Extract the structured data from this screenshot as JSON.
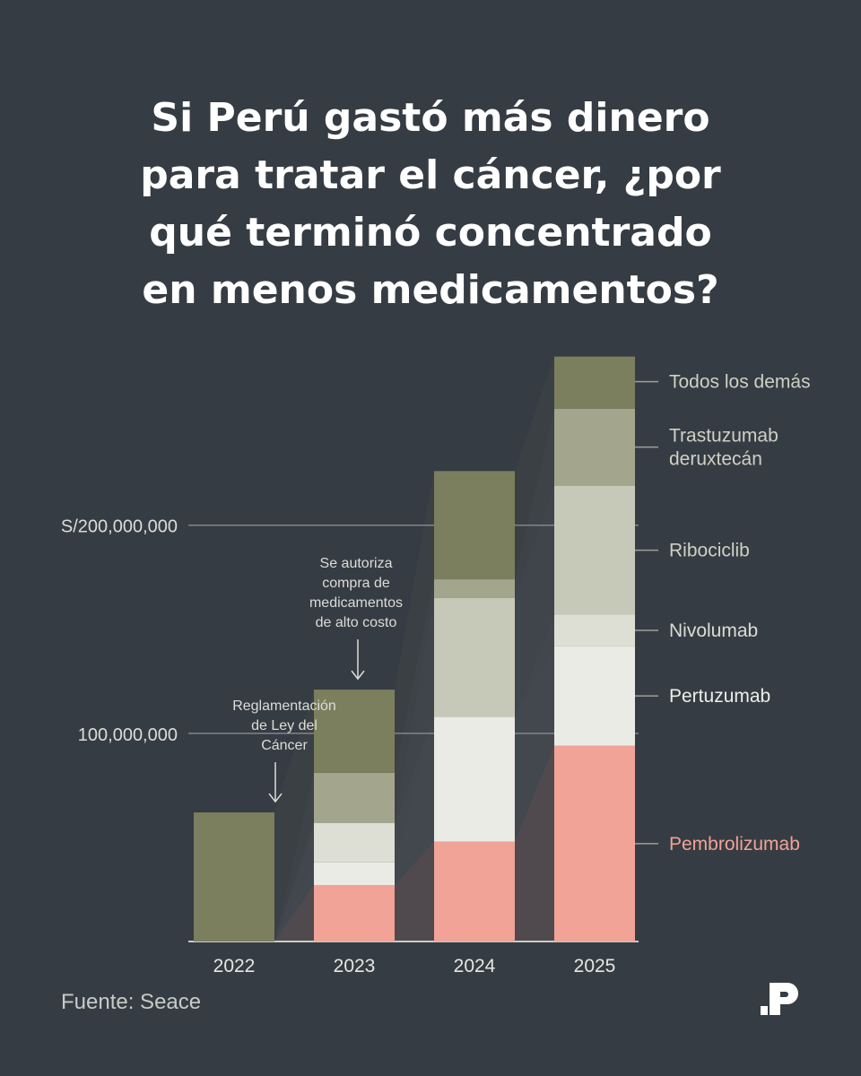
{
  "title_lines": [
    "Si Perú gastó más dinero",
    "para tratar el cáncer, ¿por",
    "qué terminó concentrado",
    "en menos medicamentos?"
  ],
  "source": "Fuente: Seace",
  "chart_data": {
    "type": "bar",
    "stacked": true,
    "categories": [
      "2022",
      "2023",
      "2024",
      "2025"
    ],
    "y_ticks": [
      {
        "value": 100000000,
        "label": "100,000,000"
      },
      {
        "value": 200000000,
        "label": "S/200,000,000"
      }
    ],
    "ylim": [
      0,
      280000000
    ],
    "series": [
      {
        "name": "Pembrolizumab",
        "color": "#f0a396",
        "label_color": "#f0a396",
        "values": [
          0,
          27000000,
          48000000,
          94000000
        ]
      },
      {
        "name": "Pertuzumab",
        "color": "#eaebe5",
        "label_color": "#eeeeea",
        "values": [
          0,
          11000000,
          60000000,
          48000000
        ]
      },
      {
        "name": "Nivolumab",
        "color": "#dedfd4",
        "label_color": "#dcdcd5",
        "values": [
          0,
          19000000,
          0,
          15000000
        ]
      },
      {
        "name": "Ribociclib",
        "color": "#c7c9b8",
        "label_color": "#cfd0c5",
        "values": [
          0,
          0,
          57000000,
          62000000
        ]
      },
      {
        "name": "Trastuzumab deruxtecán",
        "color": "#a3a68d",
        "label_color": "#cfd0c5",
        "label_lines": [
          "Trastuzumab",
          "deruxtecán"
        ],
        "values": [
          0,
          24000000,
          9000000,
          37000000
        ]
      },
      {
        "name": "Todos los demás",
        "color": "#7b7f5d",
        "label_color": "#cfd0c5",
        "values": [
          62000000,
          40000000,
          52000000,
          25000000
        ]
      }
    ],
    "annotations": [
      {
        "category": "2022",
        "lines": [
          "Reglamentación",
          "de Ley del",
          "Cáncer"
        ]
      },
      {
        "category": "2023",
        "lines": [
          "Se autoriza",
          "compra de",
          "medicamentos",
          "de alto costo"
        ]
      }
    ]
  }
}
